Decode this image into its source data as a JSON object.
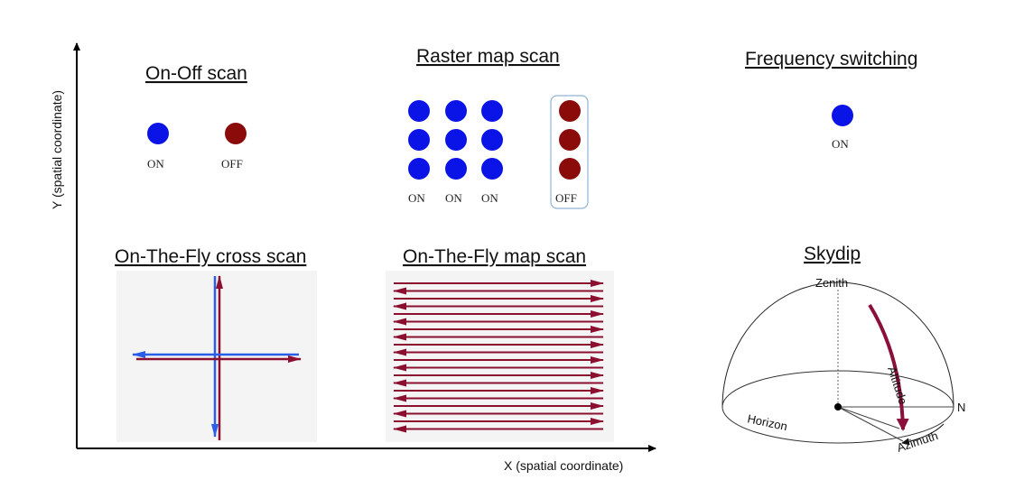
{
  "axes": {
    "x_label": "X (spatial coordinate)",
    "y_label": "Y (spatial coordinate)"
  },
  "panels": {
    "onoff": {
      "title": "On-Off scan",
      "labels": [
        "ON",
        "OFF"
      ]
    },
    "raster": {
      "title": "Raster map scan",
      "labels": [
        "ON",
        "ON",
        "ON",
        "OFF"
      ]
    },
    "freq": {
      "title": "Frequency switching",
      "label": "ON"
    },
    "otf_cross": {
      "title": "On-The-Fly cross scan"
    },
    "otf_map": {
      "title": "On-The-Fly map scan"
    },
    "skydip": {
      "title": "Skydip",
      "zenith": "Zenith",
      "altitude": "Altitude",
      "horizon": "Horizon",
      "azimuth": "Azimuth",
      "north": "N"
    }
  },
  "colors": {
    "on": "#0a14e6",
    "off": "#8b0a0a",
    "scan_red": "#8b1030",
    "scan_blue": "#2a5de8",
    "skydip_arrow": "#8a0f3a",
    "bracket": "#8fb4d8"
  }
}
